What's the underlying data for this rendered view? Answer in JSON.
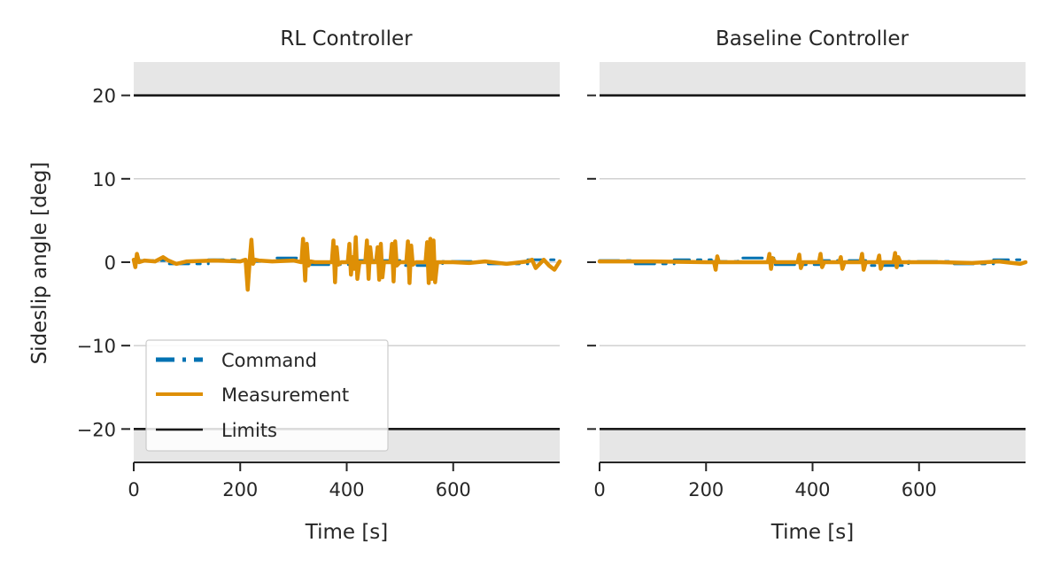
{
  "chart_data": {
    "type": "line",
    "ylabel": "Sideslip angle [deg]",
    "xlabel": "Time [s]",
    "xlim": [
      0,
      800
    ],
    "ylim": [
      -24,
      24
    ],
    "xticks": [
      0,
      200,
      400,
      600
    ],
    "yticks": [
      20,
      10,
      0,
      -10,
      -20
    ],
    "tick_labels": {
      "x": [
        "0",
        "200",
        "400",
        "600"
      ],
      "y": [
        "20",
        "10",
        "0",
        "−10",
        "−20"
      ]
    },
    "limits": {
      "upper": 20,
      "lower": -20
    },
    "grid": true,
    "legend": {
      "placement": "lower-left",
      "entries": [
        "Command",
        "Measurement",
        "Limits"
      ]
    },
    "colors": {
      "command": "#0072b2",
      "measurement": "#de8f05",
      "limits": "#1a1a1a",
      "shade": "#e6e6e6",
      "grid": "#cccccc"
    },
    "panels": [
      {
        "title": "RL Controller",
        "series": [
          {
            "name": "Command",
            "x": [
              0,
              60,
              60,
              140,
              140,
              210,
              210,
              260,
              260,
              330,
              330,
              420,
              420,
              500,
              500,
              580,
              580,
              660,
              660,
              740,
              740,
              800
            ],
            "y": [
              0.2,
              0.2,
              -0.2,
              -0.2,
              0.3,
              0.3,
              0.1,
              0.1,
              0.5,
              0.5,
              -0.3,
              -0.3,
              0.2,
              0.2,
              -0.4,
              -0.4,
              0.1,
              0.1,
              -0.2,
              -0.2,
              0.3,
              0.3
            ]
          },
          {
            "name": "Measurement",
            "x": [
              0,
              3,
              6,
              10,
              20,
              40,
              55,
              65,
              80,
              100,
              150,
              200,
              210,
              214,
              218,
              221,
              224,
              228,
              235,
              260,
              300,
              315,
              318,
              322,
              325,
              328,
              332,
              340,
              372,
              375,
              378,
              381,
              384,
              390,
              402,
              405,
              408,
              411,
              414,
              417,
              420,
              424,
              435,
              438,
              441,
              444,
              447,
              455,
              458,
              461,
              464,
              467,
              470,
              482,
              485,
              488,
              491,
              494,
              500,
              512,
              515,
              518,
              521,
              524,
              530,
              548,
              551,
              554,
              557,
              560,
              563,
              566,
              570,
              600,
              630,
              660,
              700,
              740,
              748,
              755,
              770,
              780,
              790,
              800
            ],
            "y": [
              0.3,
              -0.6,
              1.0,
              0.0,
              0.2,
              0.1,
              0.6,
              0.2,
              -0.2,
              0.1,
              0.2,
              0.1,
              0.3,
              -3.3,
              0.4,
              2.7,
              -0.2,
              0.3,
              0.2,
              0.1,
              0.2,
              0.0,
              2.8,
              -2.2,
              2.2,
              -0.4,
              0.1,
              0.0,
              0.0,
              2.6,
              -2.4,
              1.8,
              -0.3,
              0.0,
              0.0,
              2.2,
              -1.5,
              0.6,
              -0.8,
              3.0,
              -2.0,
              0.0,
              0.0,
              2.6,
              -2.0,
              1.8,
              0.0,
              0.0,
              1.8,
              -2.1,
              2.2,
              -1.8,
              0.0,
              0.0,
              2.2,
              -2.3,
              2.5,
              -0.4,
              0.0,
              0.0,
              2.5,
              -2.5,
              2.0,
              -0.3,
              0.0,
              0.0,
              2.4,
              -2.5,
              2.8,
              -2.0,
              2.6,
              -2.4,
              0.0,
              0.0,
              -0.1,
              0.1,
              -0.2,
              0.1,
              0.3,
              -0.7,
              0.3,
              -0.4,
              -0.9,
              0.1
            ]
          }
        ]
      },
      {
        "title": "Baseline Controller",
        "series": [
          {
            "name": "Command",
            "x": [
              0,
              60,
              60,
              140,
              140,
              210,
              210,
              260,
              260,
              330,
              330,
              420,
              420,
              500,
              500,
              580,
              580,
              660,
              660,
              740,
              740,
              800
            ],
            "y": [
              0.2,
              0.2,
              -0.2,
              -0.2,
              0.3,
              0.3,
              0.1,
              0.1,
              0.5,
              0.5,
              -0.3,
              -0.3,
              0.2,
              0.2,
              -0.4,
              -0.4,
              0.1,
              0.1,
              -0.2,
              -0.2,
              0.3,
              0.3
            ]
          },
          {
            "name": "Measurement",
            "x": [
              0,
              100,
              200,
              215,
              218,
              221,
              224,
              230,
              300,
              316,
              319,
              322,
              325,
              330,
              372,
              375,
              378,
              382,
              412,
              415,
              418,
              422,
              450,
              453,
              456,
              460,
              490,
              493,
              496,
              500,
              522,
              525,
              528,
              532,
              552,
              555,
              558,
              561,
              565,
              640,
              700,
              750,
              790,
              800
            ],
            "y": [
              0.1,
              0.1,
              0.0,
              0.0,
              -0.9,
              0.7,
              0.0,
              0.0,
              0.0,
              0.0,
              1.0,
              -0.8,
              0.5,
              0.0,
              0.0,
              0.9,
              -0.7,
              0.0,
              0.0,
              1.0,
              -0.6,
              0.0,
              0.0,
              0.6,
              -0.8,
              0.0,
              0.0,
              1.0,
              -0.9,
              0.0,
              0.0,
              0.8,
              -0.8,
              0.0,
              0.0,
              1.1,
              -0.6,
              0.6,
              0.0,
              0.0,
              -0.1,
              0.1,
              -0.2,
              0.0
            ]
          }
        ]
      }
    ]
  }
}
